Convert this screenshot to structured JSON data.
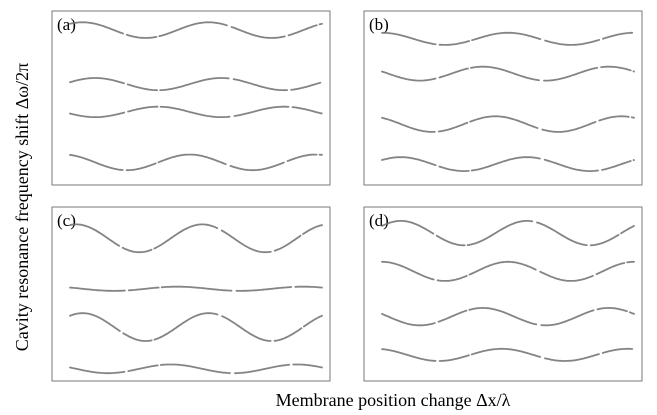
{
  "chart_data": {
    "type": "line",
    "xlabel": "Membrane position change Δx/λ",
    "ylabel": "Cavity resonance frequency shift Δω/2π",
    "grid": false,
    "legend": "none",
    "stroke_color": "#6e6e6e",
    "panels": [
      {
        "label": "(a)",
        "modes": [
          {
            "offset": 0.89,
            "amplitude": 0.045,
            "phase": 0.15,
            "cycles": 2.0
          },
          {
            "offset": 0.58,
            "amplitude": 0.035,
            "phase": 0.05,
            "cycles": 2.0
          },
          {
            "offset": 0.42,
            "amplitude": 0.03,
            "phase": 0.55,
            "cycles": 2.0
          },
          {
            "offset": 0.13,
            "amplitude": 0.045,
            "phase": 0.3,
            "cycles": 2.0
          }
        ]
      },
      {
        "label": "(b)",
        "modes": [
          {
            "offset": 0.84,
            "amplitude": 0.035,
            "phase": 0.25,
            "cycles": 2.0
          },
          {
            "offset": 0.64,
            "amplitude": 0.04,
            "phase": 0.45,
            "cycles": 2.0
          },
          {
            "offset": 0.35,
            "amplitude": 0.045,
            "phase": 0.35,
            "cycles": 2.0
          },
          {
            "offset": 0.12,
            "amplitude": 0.04,
            "phase": 0.1,
            "cycles": 2.0
          }
        ]
      },
      {
        "label": "(c)",
        "modes": [
          {
            "offset": 0.82,
            "amplitude": 0.08,
            "phase": 0.2,
            "cycles": 2.0
          },
          {
            "offset": 0.53,
            "amplitude": 0.012,
            "phase": 0.4,
            "cycles": 2.0
          },
          {
            "offset": 0.31,
            "amplitude": 0.08,
            "phase": 0.15,
            "cycles": 2.0
          },
          {
            "offset": 0.07,
            "amplitude": 0.025,
            "phase": 0.45,
            "cycles": 2.0
          }
        ]
      },
      {
        "label": "(d)",
        "modes": [
          {
            "offset": 0.85,
            "amplitude": 0.07,
            "phase": 0.1,
            "cycles": 2.0
          },
          {
            "offset": 0.63,
            "amplitude": 0.055,
            "phase": 0.25,
            "cycles": 2.0
          },
          {
            "offset": 0.37,
            "amplitude": 0.05,
            "phase": 0.45,
            "cycles": 2.0
          },
          {
            "offset": 0.15,
            "amplitude": 0.035,
            "phase": 0.3,
            "cycles": 2.0
          }
        ]
      }
    ]
  }
}
